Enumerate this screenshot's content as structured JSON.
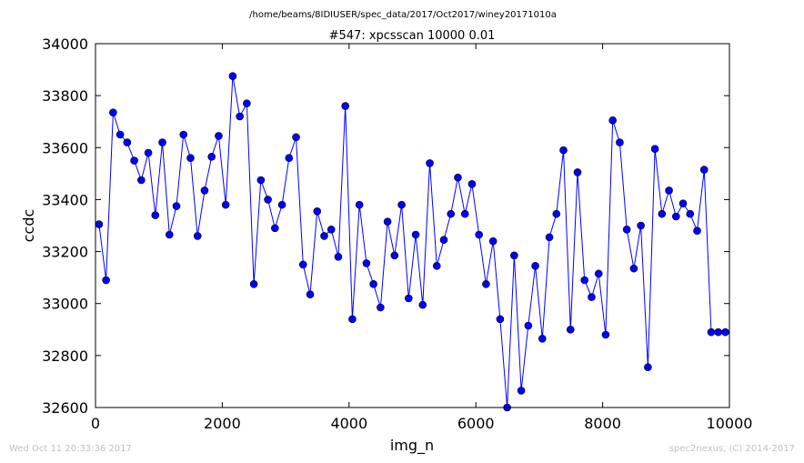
{
  "page": {
    "path": "/home/beams/8IDIUSER/spec_data/2017/Oct2017/winey20171010a",
    "timestamp": "Wed Oct 11 20:33:36 2017",
    "credit": "spec2nexus, (C) 2014-2017"
  },
  "chart_data": {
    "type": "line",
    "title": "#547: xpcsscan 10000 0.01",
    "xlabel": "img_n",
    "ylabel": "ccdc",
    "xlim": [
      0,
      10000
    ],
    "ylim": [
      32600,
      34000
    ],
    "xticks": [
      "0",
      "2000",
      "4000",
      "6000",
      "8000",
      "10000"
    ],
    "yticks": [
      "32600",
      "32800",
      "33000",
      "33200",
      "33400",
      "33600",
      "33800",
      "34000"
    ],
    "grid": false,
    "line_color": "#0000ff",
    "marker_color": "#0000ff",
    "series": [
      {
        "x": [
          56,
          167,
          278,
          389,
          500,
          611,
          722,
          833,
          944,
          1055,
          1166,
          1277,
          1388,
          1499,
          1610,
          1721,
          1832,
          1943,
          2054,
          2165,
          2276,
          2387,
          2498,
          2609,
          2720,
          2831,
          2942,
          3053,
          3164,
          3275,
          3386,
          3497,
          3608,
          3719,
          3830,
          3941,
          4052,
          4163,
          4274,
          4385,
          4496,
          4607,
          4718,
          4829,
          4940,
          5051,
          5162,
          5273,
          5384,
          5495,
          5606,
          5717,
          5828,
          5939,
          6050,
          6161,
          6272,
          6383,
          6494,
          6605,
          6716,
          6827,
          6938,
          7049,
          7160,
          7271,
          7382,
          7493,
          7604,
          7715,
          7826,
          7937,
          8048,
          8159,
          8270,
          8381,
          8492,
          8603,
          8714,
          8825,
          8936,
          9047,
          9158,
          9269,
          9380,
          9491,
          9602,
          9713,
          9824,
          9935
        ],
        "values": [
          33305,
          33090,
          33735,
          33650,
          33620,
          33550,
          33475,
          33580,
          33340,
          33620,
          33265,
          33375,
          33650,
          33560,
          33260,
          33435,
          33565,
          33645,
          33380,
          33875,
          33720,
          33770,
          33075,
          33475,
          33400,
          33290,
          33380,
          33560,
          33640,
          33150,
          33035,
          33355,
          33260,
          33285,
          33180,
          33760,
          32940,
          33380,
          33155,
          33075,
          32985,
          33315,
          33185,
          33380,
          33020,
          33265,
          32995,
          33540,
          33145,
          33245,
          33345,
          33485,
          33345,
          33460,
          33265,
          33075,
          33240,
          32940,
          32600,
          33185,
          32665,
          32915,
          33145,
          32865,
          33255,
          33345,
          33590,
          32900,
          33505,
          33090,
          33025,
          33115,
          32880,
          33705,
          33620,
          33285,
          33135,
          33300,
          32755,
          33595,
          33345,
          33435,
          33335,
          33385,
          33345,
          33280,
          33515,
          32890,
          32890,
          32890
        ]
      }
    ]
  }
}
